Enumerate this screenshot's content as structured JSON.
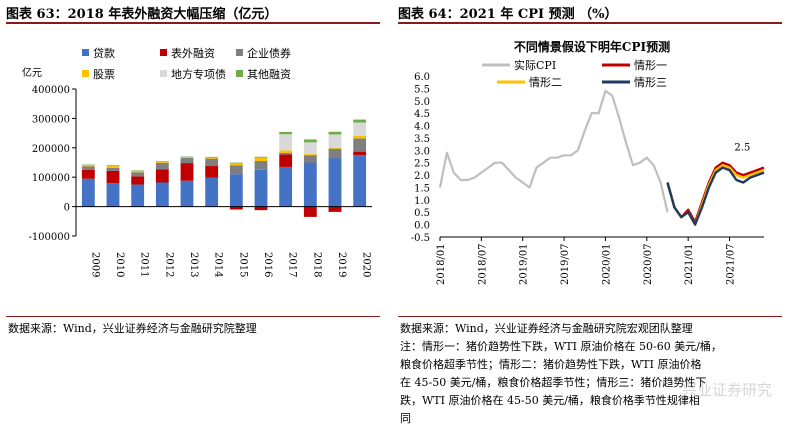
{
  "left_panel": {
    "title": "图表 63：2018 年表外融资大幅压缩（亿元）",
    "source": "数据来源：Wind，兴业证券经济与金融研究院整理"
  },
  "right_panel": {
    "title": "图表 64：2021 年 CPI 预测 （%）",
    "source": "数据来源：Wind，兴业证券经济与金融研究院宏观团队整理\n注：情形一：猪价趋势性下跌，WTI 原油价格在 50-60 美元/桶，\n粮食价格超季节性；情形二：猪价趋势性下跌，WTI 原油价格\n在 45-50 美元/桶，粮食价格超季节性；情形三：猪价趋势性下\n跌，WTI 原油价格在 45-50 美元/桶，粮食价格季节性规律相\n同",
    "watermark": "兴业证券研究"
  },
  "chart_data": [
    {
      "type": "bar",
      "stacked": true,
      "ylabel": "亿元",
      "categories": [
        "2009",
        "2010",
        "2011",
        "2012",
        "2013",
        "2014",
        "2015",
        "2016",
        "2017",
        "2018",
        "2019",
        "2020"
      ],
      "ylim": [
        -100000,
        400000
      ],
      "yticks": [
        -100000,
        0,
        100000,
        200000,
        300000,
        400000
      ],
      "ytick_labels": [
        "-100000",
        "0",
        "100000",
        "200000",
        "300000",
        "400000"
      ],
      "grid": false,
      "legend_position": "top",
      "series": [
        {
          "name": "贷款",
          "color": "#4472c4",
          "values": [
            95000,
            80000,
            75000,
            82000,
            88000,
            98000,
            110000,
            125000,
            135000,
            150000,
            165000,
            175000
          ]
        },
        {
          "name": "表外融资",
          "color": "#c00000",
          "values": [
            30000,
            42000,
            28000,
            45000,
            60000,
            40000,
            -10000,
            -12000,
            42000,
            -35000,
            -18000,
            12000
          ]
        },
        {
          "name": "企业债券",
          "color": "#7f7f7f",
          "values": [
            12000,
            10000,
            14000,
            22000,
            18000,
            25000,
            30000,
            30000,
            6000,
            25000,
            32000,
            45000
          ]
        },
        {
          "name": "股票",
          "color": "#ffc000",
          "values": [
            4000,
            6000,
            4000,
            2500,
            2200,
            4000,
            7000,
            12000,
            8000,
            3500,
            3500,
            9000
          ]
        },
        {
          "name": "地方专项债",
          "color": "#d9d9d9",
          "values": [
            0,
            0,
            0,
            0,
            0,
            0,
            0,
            0,
            55000,
            40000,
            45000,
            45000
          ]
        },
        {
          "name": "其他融资",
          "color": "#70ad47",
          "values": [
            2000,
            2500,
            2000,
            2500,
            2000,
            2000,
            2500,
            2500,
            8000,
            10000,
            9000,
            10000
          ]
        }
      ]
    },
    {
      "type": "line",
      "title": "不同情景假设下明年CPI预测",
      "ylim": [
        -0.5,
        6.0
      ],
      "yticks": [
        -0.5,
        0.0,
        0.5,
        1.0,
        1.5,
        2.0,
        2.5,
        3.0,
        3.5,
        4.0,
        4.5,
        5.0,
        5.5,
        6.0
      ],
      "ytick_labels": [
        "-0.5",
        "0.0",
        "0.5",
        "1.0",
        "1.5",
        "2.0",
        "2.5",
        "3.0",
        "3.5",
        "4.0",
        "4.5",
        "5.0",
        "5.5",
        "6.0"
      ],
      "xticks": [
        "2018-01",
        "2018-07",
        "2019-01",
        "2019-07",
        "2020-01",
        "2020-07",
        "2021-01",
        "2021-07"
      ],
      "xtick_labels": [
        "2018/01",
        "2018/07",
        "2019/01",
        "2019/07",
        "2020/01",
        "2020/07",
        "2021/01",
        "2021/07"
      ],
      "grid": false,
      "legend_position": "top",
      "annotations": [
        {
          "x": "2021-08",
          "y": 2.5,
          "text": "2.5"
        }
      ],
      "series": [
        {
          "name": "实际CPI",
          "color": "#bfbfbf",
          "x": [
            "2018-01",
            "2018-02",
            "2018-03",
            "2018-04",
            "2018-05",
            "2018-06",
            "2018-07",
            "2018-08",
            "2018-09",
            "2018-10",
            "2018-11",
            "2018-12",
            "2019-01",
            "2019-02",
            "2019-03",
            "2019-04",
            "2019-05",
            "2019-06",
            "2019-07",
            "2019-08",
            "2019-09",
            "2019-10",
            "2019-11",
            "2019-12",
            "2020-01",
            "2020-02",
            "2020-03",
            "2020-04",
            "2020-05",
            "2020-06",
            "2020-07",
            "2020-08",
            "2020-09",
            "2020-10"
          ],
          "values": [
            1.5,
            2.9,
            2.1,
            1.8,
            1.8,
            1.9,
            2.1,
            2.3,
            2.5,
            2.5,
            2.2,
            1.9,
            1.7,
            1.5,
            2.3,
            2.5,
            2.7,
            2.7,
            2.8,
            2.8,
            3.0,
            3.8,
            4.5,
            4.5,
            5.4,
            5.2,
            4.3,
            3.3,
            2.4,
            2.5,
            2.7,
            2.4,
            1.7,
            0.5
          ]
        },
        {
          "name": "情形一",
          "color": "#c00000",
          "x": [
            "2020-10",
            "2020-11",
            "2020-12",
            "2021-01",
            "2021-02",
            "2021-03",
            "2021-04",
            "2021-05",
            "2021-06",
            "2021-07",
            "2021-08",
            "2021-09",
            "2021-10",
            "2021-11",
            "2021-12"
          ],
          "values": [
            1.7,
            0.7,
            0.3,
            0.6,
            0.1,
            0.9,
            1.7,
            2.3,
            2.5,
            2.4,
            2.1,
            2.0,
            2.1,
            2.2,
            2.3
          ]
        },
        {
          "name": "情形二",
          "color": "#ffc000",
          "x": [
            "2020-10",
            "2020-11",
            "2020-12",
            "2021-01",
            "2021-02",
            "2021-03",
            "2021-04",
            "2021-05",
            "2021-06",
            "2021-07",
            "2021-08",
            "2021-09",
            "2021-10",
            "2021-11",
            "2021-12"
          ],
          "values": [
            1.7,
            0.7,
            0.3,
            0.5,
            0.0,
            0.8,
            1.6,
            2.2,
            2.4,
            2.3,
            2.0,
            1.9,
            2.0,
            2.1,
            2.2
          ]
        },
        {
          "name": "情形三",
          "color": "#203864",
          "x": [
            "2020-10",
            "2020-11",
            "2020-12",
            "2021-01",
            "2021-02",
            "2021-03",
            "2021-04",
            "2021-05",
            "2021-06",
            "2021-07",
            "2021-08",
            "2021-09",
            "2021-10",
            "2021-11",
            "2021-12"
          ],
          "values": [
            1.7,
            0.7,
            0.3,
            0.5,
            0.0,
            0.7,
            1.5,
            2.1,
            2.3,
            2.2,
            1.8,
            1.7,
            1.9,
            2.0,
            2.1
          ]
        }
      ]
    }
  ]
}
